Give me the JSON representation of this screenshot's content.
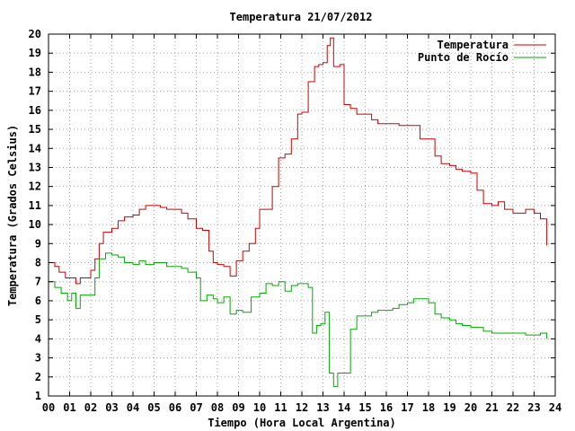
{
  "chart_data": {
    "type": "line",
    "title": "Temperatura 21/07/2012",
    "xlabel": "Tiempo (Hora Local Argentina)",
    "ylabel": "Temperatura (Grados Celsius)",
    "xlim": [
      0,
      24
    ],
    "ylim": [
      1,
      20
    ],
    "x_ticks": [
      "00",
      "01",
      "02",
      "03",
      "04",
      "05",
      "06",
      "07",
      "08",
      "09",
      "10",
      "11",
      "12",
      "13",
      "14",
      "15",
      "16",
      "17",
      "18",
      "19",
      "20",
      "21",
      "22",
      "23",
      "24"
    ],
    "y_ticks": [
      1,
      2,
      3,
      4,
      5,
      6,
      7,
      8,
      9,
      10,
      11,
      12,
      13,
      14,
      15,
      16,
      17,
      18,
      19,
      20
    ],
    "grid": true,
    "legend_position": "top-right",
    "series": [
      {
        "name": "Temperatura",
        "color": "#cc0000",
        "x": [
          0,
          0.3,
          0.5,
          0.8,
          1.0,
          1.3,
          1.5,
          1.8,
          2.0,
          2.2,
          2.4,
          2.6,
          2.8,
          3.0,
          3.3,
          3.6,
          4.0,
          4.3,
          4.6,
          5.0,
          5.3,
          5.6,
          6.0,
          6.3,
          6.6,
          7.0,
          7.3,
          7.6,
          7.8,
          8.0,
          8.3,
          8.6,
          8.9,
          9.2,
          9.5,
          9.8,
          10.0,
          10.3,
          10.6,
          10.9,
          11.2,
          11.5,
          11.8,
          12.0,
          12.3,
          12.6,
          12.8,
          13.0,
          13.2,
          13.35,
          13.5,
          13.8,
          14.0,
          14.3,
          14.6,
          15.0,
          15.3,
          15.6,
          16.0,
          16.3,
          16.6,
          17.0,
          17.3,
          17.6,
          18.0,
          18.3,
          18.6,
          19.0,
          19.3,
          19.6,
          20.0,
          20.3,
          20.6,
          21.0,
          21.3,
          21.6,
          22.0,
          22.3,
          22.6,
          23.0,
          23.3,
          23.6
        ],
        "y": [
          8.0,
          7.8,
          7.5,
          7.2,
          7.2,
          6.9,
          7.2,
          7.2,
          7.6,
          8.2,
          9.0,
          9.6,
          9.6,
          9.8,
          10.2,
          10.4,
          10.5,
          10.8,
          11.0,
          11.0,
          10.9,
          10.8,
          10.8,
          10.6,
          10.3,
          9.8,
          9.7,
          8.6,
          8.0,
          7.9,
          7.8,
          7.3,
          8.1,
          8.6,
          9.0,
          9.8,
          10.8,
          10.8,
          12.0,
          13.5,
          13.7,
          14.5,
          15.8,
          15.9,
          17.5,
          18.3,
          18.4,
          18.5,
          19.4,
          19.8,
          18.3,
          18.4,
          16.3,
          16.1,
          15.8,
          15.8,
          15.5,
          15.3,
          15.3,
          15.3,
          15.2,
          15.2,
          15.2,
          14.5,
          14.5,
          13.6,
          13.2,
          13.1,
          12.9,
          12.8,
          12.7,
          11.8,
          11.1,
          11.0,
          11.2,
          10.8,
          10.6,
          10.6,
          10.8,
          10.6,
          10.3,
          8.9
        ]
      },
      {
        "name": "Punto de Rocío",
        "color": "#00aa00",
        "x": [
          0,
          0.3,
          0.6,
          0.9,
          1.1,
          1.3,
          1.5,
          1.8,
          2.0,
          2.2,
          2.4,
          2.7,
          3.0,
          3.3,
          3.6,
          4.0,
          4.3,
          4.6,
          5.0,
          5.3,
          5.6,
          6.0,
          6.3,
          6.6,
          7.0,
          7.2,
          7.5,
          7.8,
          8.0,
          8.3,
          8.6,
          8.9,
          9.2,
          9.6,
          10.0,
          10.3,
          10.6,
          10.9,
          11.2,
          11.5,
          11.8,
          12.0,
          12.3,
          12.5,
          12.7,
          12.9,
          13.1,
          13.3,
          13.5,
          13.7,
          14.0,
          14.3,
          14.6,
          15.0,
          15.3,
          15.6,
          16.0,
          16.3,
          16.6,
          17.0,
          17.3,
          17.6,
          18.0,
          18.3,
          18.6,
          19.0,
          19.3,
          19.6,
          20.0,
          20.3,
          20.6,
          21.0,
          21.3,
          21.6,
          22.0,
          22.3,
          22.6,
          23.0,
          23.3,
          23.6
        ],
        "y": [
          7.0,
          6.7,
          6.4,
          6.0,
          6.4,
          5.6,
          6.3,
          6.3,
          6.3,
          7.2,
          8.2,
          8.5,
          8.4,
          8.3,
          8.0,
          7.9,
          8.1,
          7.9,
          8.0,
          8.0,
          7.8,
          7.8,
          7.7,
          7.5,
          7.2,
          6.0,
          6.3,
          6.1,
          5.9,
          6.2,
          5.3,
          5.5,
          5.4,
          6.2,
          6.4,
          6.9,
          6.8,
          7.0,
          6.5,
          6.8,
          6.9,
          6.9,
          6.7,
          4.3,
          4.7,
          4.8,
          5.4,
          2.2,
          1.5,
          2.2,
          2.2,
          4.5,
          5.2,
          5.2,
          5.4,
          5.5,
          5.5,
          5.6,
          5.8,
          5.9,
          6.1,
          6.1,
          5.9,
          5.3,
          5.1,
          5.0,
          4.8,
          4.7,
          4.6,
          4.6,
          4.4,
          4.3,
          4.3,
          4.3,
          4.3,
          4.3,
          4.2,
          4.2,
          4.3,
          4.0
        ]
      }
    ]
  }
}
